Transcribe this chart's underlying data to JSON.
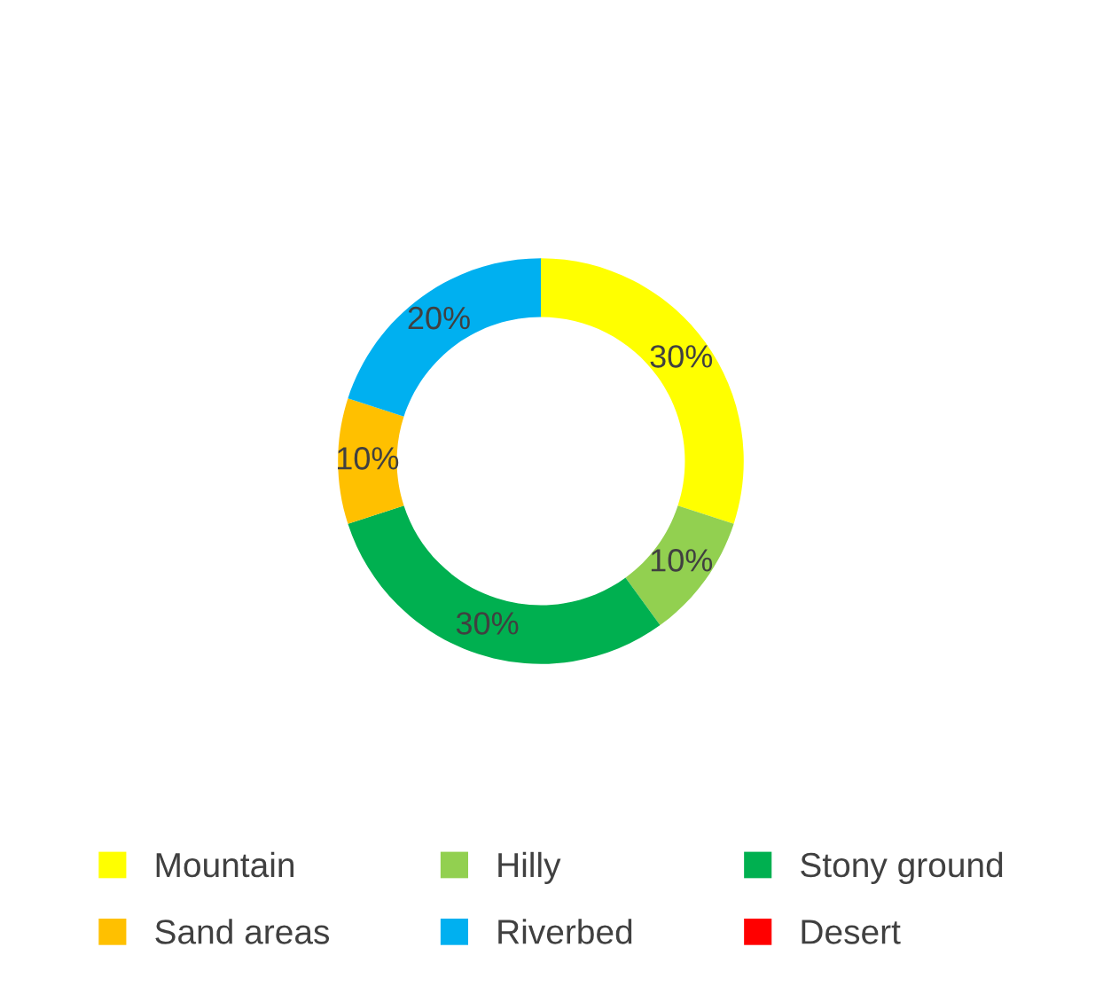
{
  "chart_data": {
    "type": "donut",
    "categories": [
      "Mountain",
      "Hilly",
      "Stony ground",
      "Sand areas",
      "Riverbed",
      "Desert"
    ],
    "values": [
      30,
      10,
      30,
      10,
      20,
      0
    ],
    "colors": [
      "#ffff00",
      "#92d050",
      "#00b050",
      "#ffc000",
      "#00b0f0",
      "#ff0000"
    ],
    "value_labels": [
      "30%",
      "10%",
      "30%",
      "10%",
      "20%",
      null
    ],
    "legend": "bottom"
  }
}
